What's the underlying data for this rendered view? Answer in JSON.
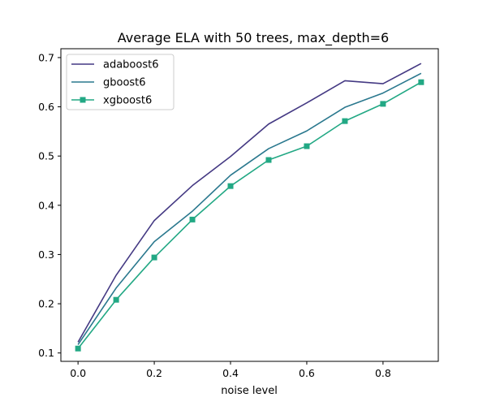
{
  "chart_data": {
    "type": "line",
    "title": "Average ELA with 50 trees, max_depth=6",
    "xlabel": "noise level",
    "ylabel": "",
    "x": [
      0.0,
      0.1,
      0.2,
      0.3,
      0.4,
      0.5,
      0.6,
      0.7,
      0.8,
      0.9
    ],
    "xlim": [
      -0.045,
      0.945
    ],
    "ylim": [
      0.083,
      0.718
    ],
    "xticks": [
      0.0,
      0.2,
      0.4,
      0.6,
      0.8
    ],
    "xtick_labels": [
      "0.0",
      "0.2",
      "0.4",
      "0.6",
      "0.8"
    ],
    "yticks": [
      0.1,
      0.2,
      0.3,
      0.4,
      0.5,
      0.6,
      0.7
    ],
    "ytick_labels": [
      "0.1",
      "0.2",
      "0.3",
      "0.4",
      "0.5",
      "0.6",
      "0.7"
    ],
    "grid": false,
    "legend_position": "top-left",
    "series": [
      {
        "name": "adaboost6",
        "color": "#443983",
        "marker": "none",
        "values": [
          0.122,
          0.258,
          0.369,
          0.44,
          0.499,
          0.565,
          0.608,
          0.653,
          0.647,
          0.688
        ]
      },
      {
        "name": "gboost6",
        "color": "#2a788e",
        "marker": "none",
        "values": [
          0.117,
          0.232,
          0.326,
          0.388,
          0.461,
          0.515,
          0.551,
          0.599,
          0.628,
          0.668
        ]
      },
      {
        "name": "xgboost6",
        "color": "#22a884",
        "marker": "square",
        "values": [
          0.109,
          0.208,
          0.294,
          0.371,
          0.439,
          0.492,
          0.52,
          0.571,
          0.606,
          0.65
        ]
      }
    ]
  }
}
